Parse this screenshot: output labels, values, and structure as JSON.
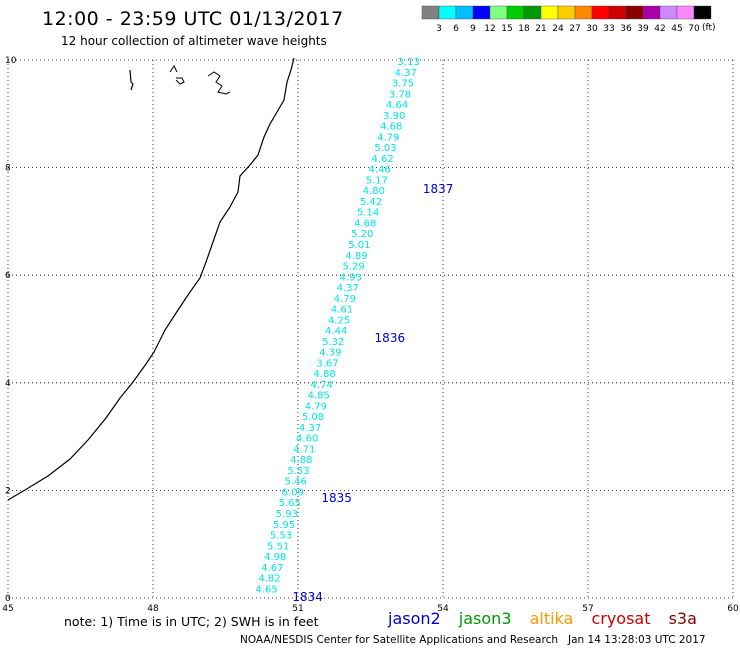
{
  "header": {
    "title": "12:00 - 23:59 UTC 01/13/2017",
    "subtitle": "12 hour collection of altimeter wave heights"
  },
  "color_scale": {
    "unit": "(ft)",
    "labels": [
      "3",
      "6",
      "9",
      "12",
      "15",
      "18",
      "21",
      "24",
      "27",
      "30",
      "33",
      "36",
      "39",
      "42",
      "45",
      "70"
    ],
    "colors": [
      "#808080",
      "#00ffff",
      "#00bfff",
      "#0000ff",
      "#80ff80",
      "#00cc00",
      "#009900",
      "#ffff00",
      "#ffcc00",
      "#ff8800",
      "#ff0000",
      "#cc0000",
      "#880000",
      "#aa00aa",
      "#cc88ff",
      "#ff88ff",
      "#000000"
    ]
  },
  "footer": {
    "note": "note: 1) Time is in UTC; 2) SWH is in feet",
    "credit": "NOAA/NESDIS Center for Satellite Applications and Research   Jan 14 13:28:03 UTC 2017"
  },
  "satellites": [
    {
      "name": "jason2",
      "color": "#0000cc"
    },
    {
      "name": "jason3",
      "color": "#009900"
    },
    {
      "name": "altika",
      "color": "#ff9900"
    },
    {
      "name": "cryosat",
      "color": "#cc0000"
    },
    {
      "name": "s3a",
      "color": "#880000"
    }
  ],
  "chart_data": {
    "type": "scatter",
    "xlim": [
      45,
      60
    ],
    "ylim": [
      0,
      10
    ],
    "x_ticks": [
      "45",
      "48",
      "51",
      "54",
      "57",
      "60"
    ],
    "y_ticks": [
      "0",
      "2",
      "4",
      "6",
      "8",
      "10"
    ],
    "grid": true,
    "series": [
      {
        "name": "jason2",
        "color": "#00e5ee",
        "points": [
          {
            "x": 50.35,
            "y": 0.18,
            "v": "4.65"
          },
          {
            "x": 50.41,
            "y": 0.38,
            "v": "4.82"
          },
          {
            "x": 50.47,
            "y": 0.58,
            "v": "4.67"
          },
          {
            "x": 50.53,
            "y": 0.78,
            "v": "4.98"
          },
          {
            "x": 50.59,
            "y": 0.98,
            "v": "5.51"
          },
          {
            "x": 50.65,
            "y": 1.18,
            "v": "5.53"
          },
          {
            "x": 50.71,
            "y": 1.38,
            "v": "5.95"
          },
          {
            "x": 50.77,
            "y": 1.58,
            "v": "5.93"
          },
          {
            "x": 50.83,
            "y": 1.78,
            "v": "5.65"
          },
          {
            "x": 50.89,
            "y": 1.98,
            "v": "6.09"
          },
          {
            "x": 50.95,
            "y": 2.18,
            "v": "5.46"
          },
          {
            "x": 51.01,
            "y": 2.38,
            "v": "5.53"
          },
          {
            "x": 51.07,
            "y": 2.58,
            "v": "4.88"
          },
          {
            "x": 51.13,
            "y": 2.78,
            "v": "4.71"
          },
          {
            "x": 51.19,
            "y": 2.98,
            "v": "4.60"
          },
          {
            "x": 51.25,
            "y": 3.18,
            "v": "4.37"
          },
          {
            "x": 51.31,
            "y": 3.38,
            "v": "5.08"
          },
          {
            "x": 51.37,
            "y": 3.58,
            "v": "4.79"
          },
          {
            "x": 51.43,
            "y": 3.78,
            "v": "4.85"
          },
          {
            "x": 51.49,
            "y": 3.98,
            "v": "4.74"
          },
          {
            "x": 51.55,
            "y": 4.18,
            "v": "4.88"
          },
          {
            "x": 51.61,
            "y": 4.38,
            "v": "3.67"
          },
          {
            "x": 51.67,
            "y": 4.58,
            "v": "4.39"
          },
          {
            "x": 51.73,
            "y": 4.78,
            "v": "5.32"
          },
          {
            "x": 51.79,
            "y": 4.98,
            "v": "4.44"
          },
          {
            "x": 51.85,
            "y": 5.18,
            "v": "4.25"
          },
          {
            "x": 51.91,
            "y": 5.38,
            "v": "4.61"
          },
          {
            "x": 51.97,
            "y": 5.58,
            "v": "4.79"
          },
          {
            "x": 52.03,
            "y": 5.78,
            "v": "4.37"
          },
          {
            "x": 52.09,
            "y": 5.98,
            "v": "4.93"
          },
          {
            "x": 52.15,
            "y": 6.18,
            "v": "5.29"
          },
          {
            "x": 52.21,
            "y": 6.38,
            "v": "4.89"
          },
          {
            "x": 52.27,
            "y": 6.58,
            "v": "5.01"
          },
          {
            "x": 52.33,
            "y": 6.78,
            "v": "5.20"
          },
          {
            "x": 52.39,
            "y": 6.98,
            "v": "4.68"
          },
          {
            "x": 52.45,
            "y": 7.18,
            "v": "5.14"
          },
          {
            "x": 52.51,
            "y": 7.38,
            "v": "5.42"
          },
          {
            "x": 52.57,
            "y": 7.58,
            "v": "4.80"
          },
          {
            "x": 52.63,
            "y": 7.78,
            "v": "5.17"
          },
          {
            "x": 52.69,
            "y": 7.98,
            "v": "4.46"
          },
          {
            "x": 52.75,
            "y": 8.18,
            "v": "4.62"
          },
          {
            "x": 52.81,
            "y": 8.38,
            "v": "5.03"
          },
          {
            "x": 52.87,
            "y": 8.58,
            "v": "4.79"
          },
          {
            "x": 52.93,
            "y": 8.78,
            "v": "4.68"
          },
          {
            "x": 52.99,
            "y": 8.98,
            "v": "3.90"
          },
          {
            "x": 53.05,
            "y": 9.18,
            "v": "4.64"
          },
          {
            "x": 53.11,
            "y": 9.38,
            "v": "3.78"
          },
          {
            "x": 53.17,
            "y": 9.58,
            "v": "3.75"
          },
          {
            "x": 53.23,
            "y": 9.78,
            "v": "4.37"
          },
          {
            "x": 53.29,
            "y": 9.98,
            "v": "3.13"
          }
        ],
        "time_labels": [
          {
            "x": 51.2,
            "y": 0.02,
            "t": "1834"
          },
          {
            "x": 51.8,
            "y": 1.86,
            "t": "1835"
          },
          {
            "x": 52.9,
            "y": 4.83,
            "t": "1836"
          },
          {
            "x": 53.9,
            "y": 7.6,
            "t": "1837"
          }
        ]
      }
    ]
  }
}
